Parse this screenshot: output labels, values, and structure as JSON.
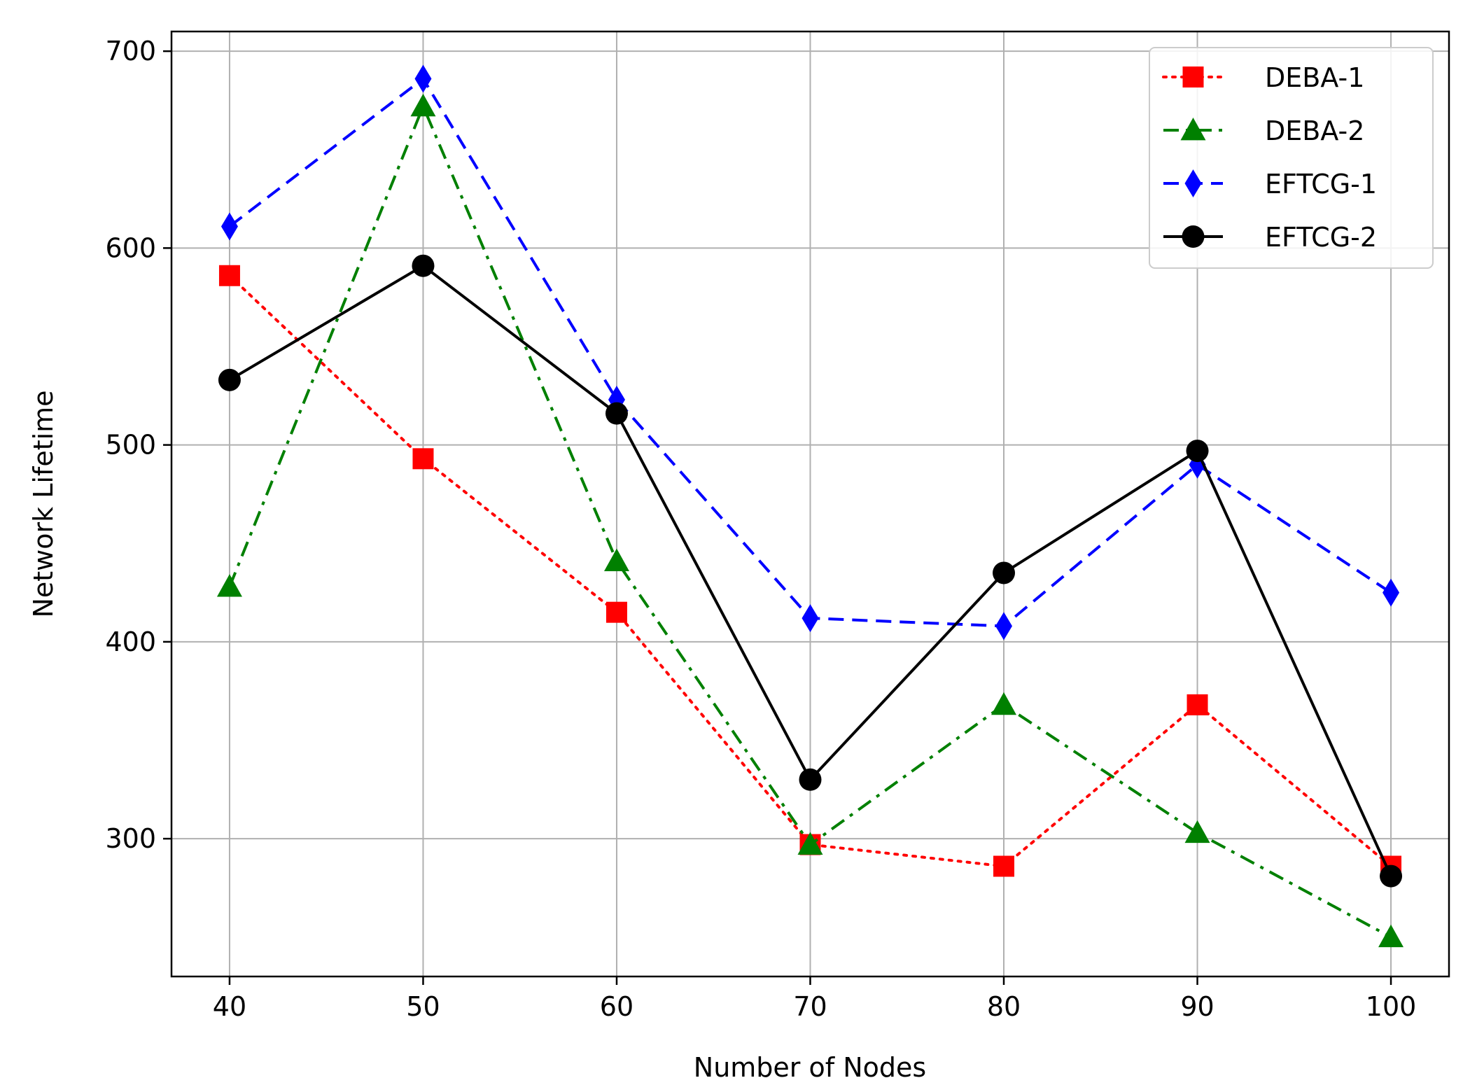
{
  "chart_data": {
    "type": "line",
    "title": "",
    "xlabel": "Number of Nodes",
    "ylabel": "Network Lifetime",
    "x": [
      40,
      50,
      60,
      70,
      80,
      90,
      100
    ],
    "xlim": [
      37,
      103
    ],
    "ylim": [
      230,
      710
    ],
    "xticks": [
      40,
      50,
      60,
      70,
      80,
      90,
      100
    ],
    "yticks": [
      300,
      400,
      500,
      600,
      700
    ],
    "grid": true,
    "legend_position": "top-right",
    "series": [
      {
        "name": "DEBA-1",
        "color": "#ff0000",
        "dash": "dotted",
        "marker": "square",
        "values": [
          586,
          493,
          415,
          297,
          286,
          368,
          286
        ]
      },
      {
        "name": "DEBA-2",
        "color": "#008000",
        "dash": "dashdot",
        "marker": "triangle",
        "values": [
          428,
          672,
          441,
          297,
          368,
          303,
          250
        ]
      },
      {
        "name": "EFTCG-1",
        "color": "#0000ff",
        "dash": "dashed",
        "marker": "diamond",
        "values": [
          611,
          686,
          523,
          412,
          408,
          490,
          425
        ]
      },
      {
        "name": "EFTCG-2",
        "color": "#000000",
        "dash": "solid",
        "marker": "circle",
        "values": [
          533,
          591,
          516,
          330,
          435,
          497,
          281
        ]
      }
    ]
  }
}
